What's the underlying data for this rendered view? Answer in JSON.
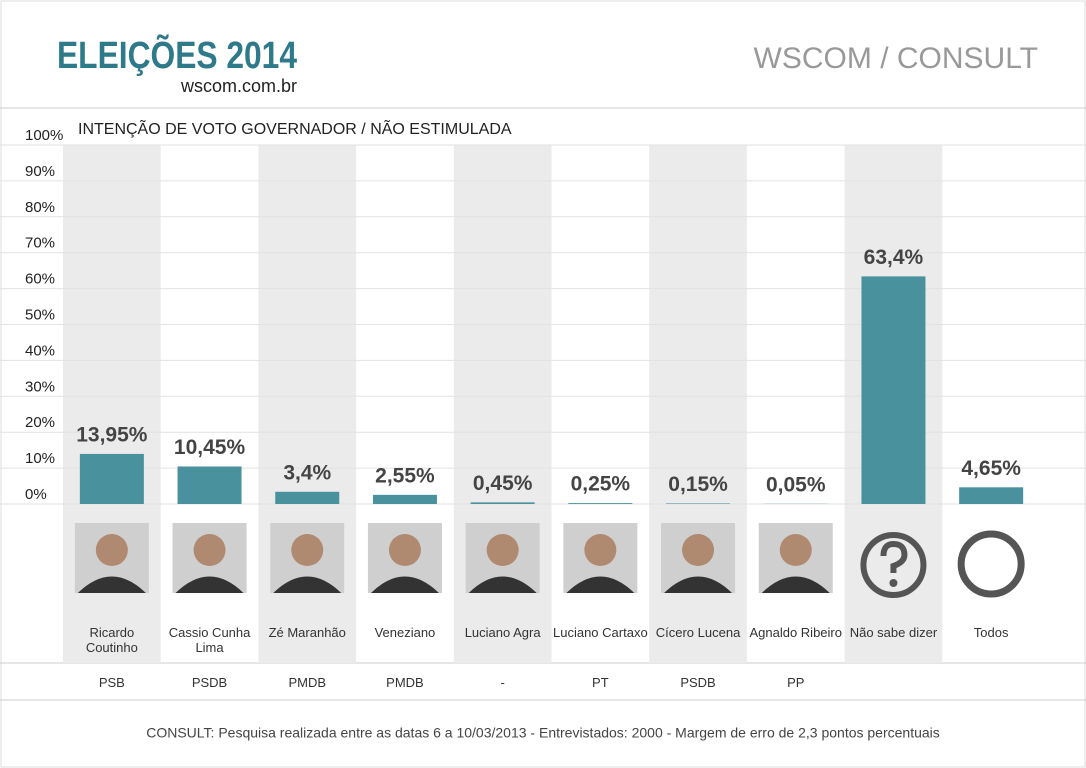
{
  "header": {
    "title": "ELEIÇÕES 2014",
    "site": "wscom.com.br",
    "source": "WSCOM / CONSULT"
  },
  "chart_data": {
    "type": "bar",
    "title": "INTENÇÃO DE VOTO GOVERNADOR / NÃO ESTIMULADA",
    "categories": [
      "Ricardo Coutinho",
      "Cassio Cunha Lima",
      "Zé Maranhão",
      "Veneziano",
      "Luciano Agra",
      "Luciano Cartaxo",
      "Cícero Lucena",
      "Agnaldo Ribeiro",
      "Não sabe dizer",
      "Todos"
    ],
    "parties": [
      "PSB",
      "PSDB",
      "PMDB",
      "PMDB",
      "-",
      "PT",
      "PSDB",
      "PP",
      null,
      null
    ],
    "values": [
      13.95,
      10.45,
      3.4,
      2.55,
      0.45,
      0.25,
      0.15,
      0.05,
      63.4,
      4.65
    ],
    "value_labels": [
      "13,95%",
      "10,45%",
      "3,4%",
      "2,55%",
      "0,45%",
      "0,25%",
      "0,15%",
      "0,05%",
      "63,4%",
      "4,65%"
    ],
    "color": "#4a919e",
    "ylim": [
      0,
      100
    ],
    "yticks": [
      {
        "value": 0,
        "label": "0%"
      },
      {
        "value": 10,
        "label": "10%"
      },
      {
        "value": 20,
        "label": "20%"
      },
      {
        "value": 30,
        "label": "30%"
      },
      {
        "value": 40,
        "label": "40%"
      },
      {
        "value": 50,
        "label": "50%"
      },
      {
        "value": 60,
        "label": "60%"
      },
      {
        "value": 70,
        "label": "70%"
      },
      {
        "value": 80,
        "label": "80%"
      },
      {
        "value": 90,
        "label": "90%"
      },
      {
        "value": 100,
        "label": "100%"
      }
    ],
    "grid": true
  },
  "footer": "CONSULT: Pesquisa realizada entre as datas 6 a 10/03/2013 - Entrevistados: 2000 - Margem de erro de 2,3 pontos percentuais"
}
